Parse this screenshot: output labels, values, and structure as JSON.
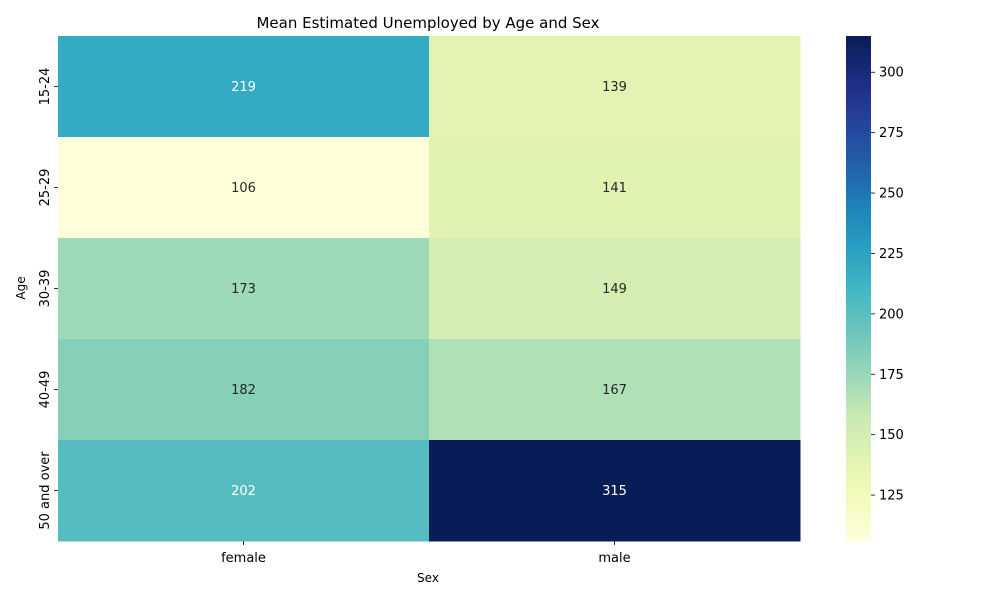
{
  "chart_data": {
    "type": "heatmap",
    "title": "Mean Estimated Unemployed by Age and Sex",
    "xlabel": "Sex",
    "ylabel": "Age",
    "x_categories": [
      "female",
      "male"
    ],
    "y_categories": [
      "15-24",
      "25-29",
      "30-39",
      "40-49",
      "50 and over"
    ],
    "values": [
      [
        219,
        139
      ],
      [
        106,
        141
      ],
      [
        173,
        149
      ],
      [
        182,
        167
      ],
      [
        202,
        315
      ]
    ],
    "colorscale": "YlGnBu",
    "color_range": [
      106,
      315
    ],
    "colorbar_ticks": [
      125,
      150,
      175,
      200,
      225,
      250,
      275,
      300
    ]
  }
}
